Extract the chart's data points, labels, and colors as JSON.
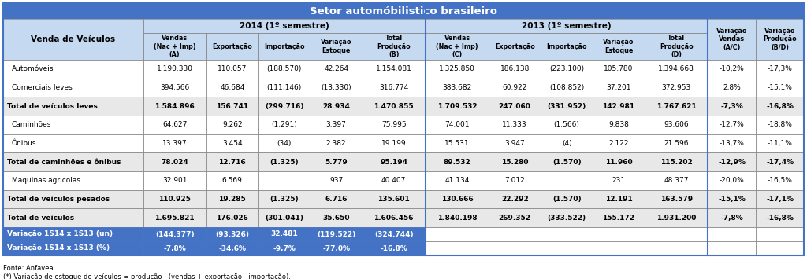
{
  "title": "Setor automóbilistico brasileiro",
  "col_header_2014": "2014 (1º semestre)",
  "col_header_2013": "2013 (1º semestre)",
  "sub_headers_2014": [
    "Vendas\n(Nac + Imp)\n(A)",
    "Exportação",
    "Importação",
    "Variação\nEstoque",
    "Total\nProdução\n(B)"
  ],
  "sub_headers_2013": [
    "Vendas\n(Nac + Imp)\n(C)",
    "Exportação",
    "Importação",
    "Variação\nEstoque",
    "Total\nProdução\n(D)"
  ],
  "sub_header_var_vendas": "Variação\nVendas\n(A/C)",
  "sub_header_var_prod": "Variação\nProdução\n(B/D)",
  "row_label_col": "Venda de Veículos",
  "rows": [
    {
      "label": "Automóveis",
      "bold": false,
      "indent": true,
      "values": [
        "1.190.330",
        "110.057",
        "(188.570)",
        "42.264",
        "1.154.081",
        "1.325.850",
        "186.138",
        "(223.100)",
        "105.780",
        "1.394.668",
        "-10,2%",
        "-17,3%"
      ]
    },
    {
      "label": "Comerciais leves",
      "bold": false,
      "indent": true,
      "values": [
        "394.566",
        "46.684",
        "(111.146)",
        "(13.330)",
        "316.774",
        "383.682",
        "60.922",
        "(108.852)",
        "37.201",
        "372.953",
        "2,8%",
        "-15,1%"
      ]
    },
    {
      "label": "Total de veículos leves",
      "bold": true,
      "indent": false,
      "values": [
        "1.584.896",
        "156.741",
        "(299.716)",
        "28.934",
        "1.470.855",
        "1.709.532",
        "247.060",
        "(331.952)",
        "142.981",
        "1.767.621",
        "-7,3%",
        "-16,8%"
      ]
    },
    {
      "label": "Caminhões",
      "bold": false,
      "indent": true,
      "values": [
        "64.627",
        "9.262",
        "(1.291)",
        "3.397",
        "75.995",
        "74.001",
        "11.333",
        "(1.566)",
        "9.838",
        "93.606",
        "-12,7%",
        "-18,8%"
      ]
    },
    {
      "label": "Ônibus",
      "bold": false,
      "indent": true,
      "values": [
        "13.397",
        "3.454",
        "(34)",
        "2.382",
        "19.199",
        "15.531",
        "3.947",
        "(4)",
        "2.122",
        "21.596",
        "-13,7%",
        "-11,1%"
      ]
    },
    {
      "label": "Total de caminhões e ônibus",
      "bold": true,
      "indent": false,
      "values": [
        "78.024",
        "12.716",
        "(1.325)",
        "5.779",
        "95.194",
        "89.532",
        "15.280",
        "(1.570)",
        "11.960",
        "115.202",
        "-12,9%",
        "-17,4%"
      ]
    },
    {
      "label": "Maquinas agricolas",
      "bold": false,
      "indent": true,
      "values": [
        "32.901",
        "6.569",
        ".",
        "937",
        "40.407",
        "41.134",
        "7.012",
        ".",
        "231",
        "48.377",
        "-20,0%",
        "-16,5%"
      ]
    },
    {
      "label": "Total de veículos pesados",
      "bold": true,
      "indent": false,
      "values": [
        "110.925",
        "19.285",
        "(1.325)",
        "6.716",
        "135.601",
        "130.666",
        "22.292",
        "(1.570)",
        "12.191",
        "163.579",
        "-15,1%",
        "-17,1%"
      ]
    },
    {
      "label": "Total de veículos",
      "bold": true,
      "indent": false,
      "values": [
        "1.695.821",
        "176.026",
        "(301.041)",
        "35.650",
        "1.606.456",
        "1.840.198",
        "269.352",
        "(333.522)",
        "155.172",
        "1.931.200",
        "-7,8%",
        "-16,8%"
      ]
    }
  ],
  "var_row_un_label": "Variação 1S14 x 1S13 (un)",
  "var_row_un_values": [
    "(144.377)",
    "(93.326)",
    "32.481",
    "(119.522)",
    "(324.744)"
  ],
  "var_row_pct_label": "Variação 1S14 x 1S13 (%)",
  "var_row_pct_values": [
    "-7,8%",
    "-34,6%",
    "-9,7%",
    "-77,0%",
    "-16,8%"
  ],
  "footnote1": "Fonte: Anfavea.",
  "footnote2": "(*) Variação de estoque de veículos = produção - (vendas + exportação - importação).",
  "title_bg": "#4472c4",
  "title_text": "#ffffff",
  "header_bg": "#c5d9f1",
  "header_text": "#000000",
  "row_bg_light": "#ffffff",
  "row_bg_bold": "#e8e8e8",
  "var_row_bg": "#4472c4",
  "var_row_text": "#ffffff",
  "border_color": "#7f7f7f",
  "section_border": "#4472c4",
  "col_widths_raw": [
    2.1,
    0.95,
    0.78,
    0.78,
    0.78,
    0.95,
    0.95,
    0.78,
    0.78,
    0.78,
    0.95,
    0.72,
    0.72
  ]
}
